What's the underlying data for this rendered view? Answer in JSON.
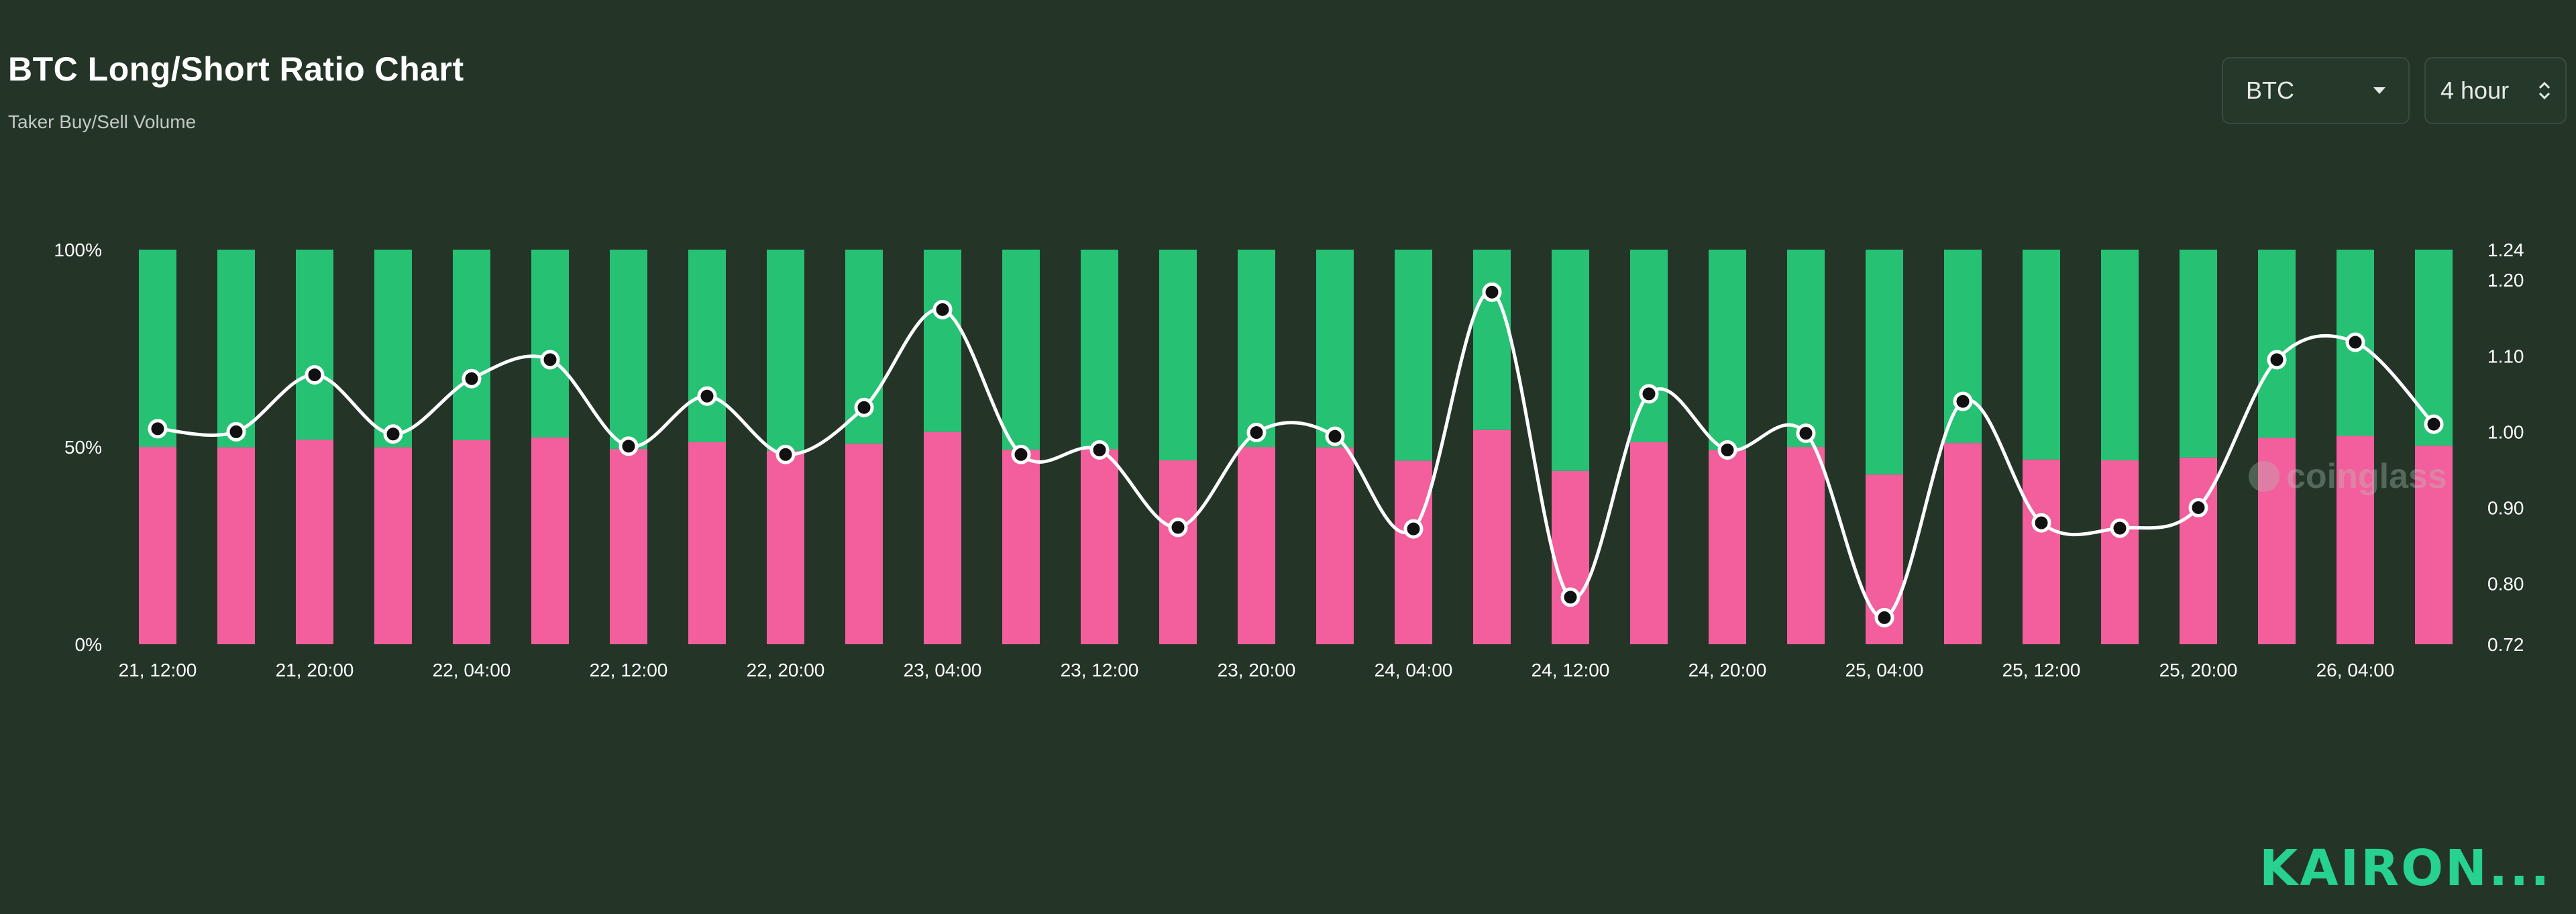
{
  "header": {
    "title": "BTC Long/Short Ratio Chart",
    "subtitle": "Taker Buy/Sell Volume"
  },
  "controls": {
    "coin_value": "BTC",
    "interval_value": "4 hour"
  },
  "watermark": "coinglass",
  "brand": "KAIRON...",
  "colors": {
    "background": "#243528",
    "long": "#f25f9c",
    "short": "#27c173",
    "ratio_line": "#ffffff"
  },
  "chart_data": {
    "type": "bar",
    "stacked": true,
    "percent_axis_ticks": [
      "100%",
      "50%",
      "0%"
    ],
    "ratio_axis_ticks": [
      "1.24",
      "1.20",
      "1.10",
      "1.00",
      "0.90",
      "0.80",
      "0.72"
    ],
    "ratio_ylim": [
      0.72,
      1.24
    ],
    "x_tick_labels": [
      "21, 12:00",
      "21, 20:00",
      "22, 04:00",
      "22, 12:00",
      "22, 20:00",
      "23, 04:00",
      "23, 12:00",
      "23, 20:00",
      "24, 04:00",
      "24, 12:00",
      "24, 20:00",
      "25, 04:00",
      "25, 12:00",
      "25, 20:00",
      "26, 04:00"
    ],
    "x_tick_every": 2,
    "grid": false,
    "series": [
      {
        "kind": "bar",
        "values": [
          50.0,
          49.9,
          51.8,
          49.9,
          51.7,
          52.4,
          49.5,
          51.2,
          49.0,
          50.8,
          53.8,
          49.3,
          49.4,
          46.6,
          50.0,
          49.9,
          46.5,
          54.3,
          43.9,
          51.2,
          49.2,
          50.0,
          43.0,
          51.0,
          46.8,
          46.6,
          47.3,
          52.3,
          52.8,
          50.3
        ]
      },
      {
        "kind": "bar",
        "values": [
          50.0,
          50.1,
          48.2,
          50.1,
          48.3,
          47.6,
          50.5,
          48.8,
          51.0,
          49.2,
          46.2,
          50.7,
          50.6,
          53.4,
          50.0,
          50.1,
          53.5,
          45.7,
          56.1,
          48.8,
          50.8,
          50.0,
          57.0,
          49.0,
          53.2,
          53.4,
          52.7,
          47.7,
          47.2,
          49.7
        ]
      },
      {
        "kind": "line",
        "axis": "right",
        "values": [
          1.004,
          1.0,
          1.075,
          0.997,
          1.07,
          1.095,
          0.981,
          1.047,
          0.97,
          1.032,
          1.161,
          0.97,
          0.976,
          0.874,
          0.999,
          0.994,
          0.872,
          1.184,
          0.782,
          1.05,
          0.976,
          0.998,
          0.755,
          1.04,
          0.88,
          0.873,
          0.9,
          1.095,
          1.118,
          1.01
        ]
      }
    ]
  }
}
